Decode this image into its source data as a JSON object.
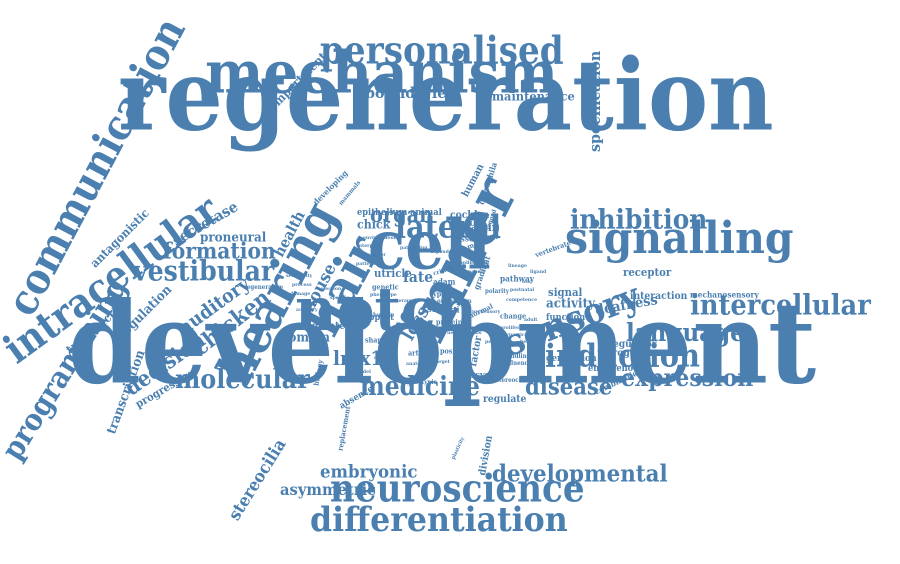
{
  "style": {
    "word_color": "#4a7fb0",
    "background": "#ffffff"
  },
  "words": [
    {
      "id": "w0",
      "text": "development"
    },
    {
      "id": "w1",
      "text": "regeneration"
    },
    {
      "id": "w2",
      "text": "mechanism"
    },
    {
      "id": "w3",
      "text": "notch"
    },
    {
      "id": "w4",
      "text": "cell"
    },
    {
      "id": "w5",
      "text": "inner"
    },
    {
      "id": "w6",
      "text": "hair"
    },
    {
      "id": "w7",
      "text": "hearing"
    },
    {
      "id": "w8",
      "text": "communication"
    },
    {
      "id": "w9",
      "text": "intracellular"
    },
    {
      "id": "w10",
      "text": "signalling"
    },
    {
      "id": "w11",
      "text": "personalised"
    },
    {
      "id": "w12",
      "text": "neuroscience"
    },
    {
      "id": "w13",
      "text": "differentiation"
    },
    {
      "id": "w14",
      "text": "sensory"
    },
    {
      "id": "w15",
      "text": "intercellular"
    },
    {
      "id": "w16",
      "text": "induction"
    },
    {
      "id": "w17",
      "text": "lateral"
    },
    {
      "id": "w18",
      "text": "inhibition"
    },
    {
      "id": "w19",
      "text": "programming"
    },
    {
      "id": "w20",
      "text": "vestibular"
    },
    {
      "id": "w21",
      "text": "molecular"
    },
    {
      "id": "w22",
      "text": "medicine"
    },
    {
      "id": "w23",
      "text": "developmental"
    },
    {
      "id": "w24",
      "text": "language"
    },
    {
      "id": "w25",
      "text": "expression"
    },
    {
      "id": "w26",
      "text": "disease"
    },
    {
      "id": "w27",
      "text": "chicken"
    },
    {
      "id": "w28",
      "text": "formation"
    },
    {
      "id": "w29",
      "text": "decision"
    },
    {
      "id": "w30",
      "text": "auditory"
    },
    {
      "id": "w31",
      "text": "lmx1a"
    },
    {
      "id": "w32",
      "text": "organ"
    },
    {
      "id": "w33",
      "text": "embryonic"
    },
    {
      "id": "w34",
      "text": "asymmetric"
    },
    {
      "id": "w35",
      "text": "stereocilia"
    },
    {
      "id": "w36",
      "text": "specification"
    },
    {
      "id": "w37",
      "text": "boundaries"
    },
    {
      "id": "w38",
      "text": "maintenance"
    },
    {
      "id": "w39",
      "text": "compartment"
    },
    {
      "id": "w40",
      "text": "secretase"
    },
    {
      "id": "w41",
      "text": "proneural"
    },
    {
      "id": "w42",
      "text": "health"
    },
    {
      "id": "w43",
      "text": "mouse"
    },
    {
      "id": "w44",
      "text": "antagonistic"
    },
    {
      "id": "w45",
      "text": "transduction"
    },
    {
      "id": "w46",
      "text": "regulation"
    },
    {
      "id": "w47",
      "text": "transcription"
    },
    {
      "id": "w48",
      "text": "progressive"
    },
    {
      "id": "w49",
      "text": "domain"
    },
    {
      "id": "w50",
      "text": "moderate"
    },
    {
      "id": "w51",
      "text": "deafness"
    },
    {
      "id": "w52",
      "text": "activity"
    },
    {
      "id": "w53",
      "text": "signal"
    },
    {
      "id": "w54",
      "text": "receptor"
    },
    {
      "id": "w55",
      "text": "regulator"
    },
    {
      "id": "w56",
      "text": "progenitor"
    },
    {
      "id": "w57",
      "text": "endogenous"
    },
    {
      "id": "w58",
      "text": "interaction"
    },
    {
      "id": "w59",
      "text": "mechanosensory"
    },
    {
      "id": "w60",
      "text": "combination"
    },
    {
      "id": "w61",
      "text": "regulate"
    },
    {
      "id": "w62",
      "text": "division"
    },
    {
      "id": "w63",
      "text": "gene"
    },
    {
      "id": "w64",
      "text": "factor"
    },
    {
      "id": "w65",
      "text": "otocyst"
    },
    {
      "id": "w66",
      "text": "loss"
    },
    {
      "id": "w67",
      "text": "fate"
    },
    {
      "id": "w68",
      "text": "utricle"
    },
    {
      "id": "w69",
      "text": "chick"
    },
    {
      "id": "w70",
      "text": "epithelium"
    },
    {
      "id": "w71",
      "text": "animal"
    },
    {
      "id": "w72",
      "text": "cochlea"
    },
    {
      "id": "w73",
      "text": "plastin"
    },
    {
      "id": "w74",
      "text": "essential"
    },
    {
      "id": "w75",
      "text": "human"
    },
    {
      "id": "w76",
      "text": "drosophila"
    },
    {
      "id": "w77",
      "text": "vertebrate"
    },
    {
      "id": "w78",
      "text": "pathway"
    },
    {
      "id": "w79",
      "text": "stem"
    },
    {
      "id": "w80",
      "text": "function"
    },
    {
      "id": "w81",
      "text": "generation"
    },
    {
      "id": "w82",
      "text": "absence"
    },
    {
      "id": "w83",
      "text": "replacement"
    },
    {
      "id": "w84",
      "text": "support"
    },
    {
      "id": "w85",
      "text": "developing"
    },
    {
      "id": "w86",
      "text": "genetic"
    },
    {
      "id": "w87",
      "text": "adam"
    },
    {
      "id": "w88",
      "text": "corti"
    },
    {
      "id": "w89",
      "text": "protein"
    },
    {
      "id": "w90",
      "text": "gradient"
    },
    {
      "id": "w91",
      "text": "mediated"
    },
    {
      "id": "w92",
      "text": "regenerative"
    },
    {
      "id": "w93",
      "text": "change"
    },
    {
      "id": "w94",
      "text": "biology"
    },
    {
      "id": "w95",
      "text": "abnormal"
    },
    {
      "id": "w96",
      "text": "stereociliary"
    },
    {
      "id": "w97",
      "text": "shaping"
    },
    {
      "id": "w98",
      "text": "artificial"
    },
    {
      "id": "w99",
      "text": "position"
    },
    {
      "id": "w100",
      "text": "handling"
    },
    {
      "id": "w101",
      "text": "influence"
    },
    {
      "id": "w102",
      "text": "orientation"
    },
    {
      "id": "w103",
      "text": "critical"
    },
    {
      "id": "w104",
      "text": "bundle"
    },
    {
      "id": "w105",
      "text": "mammals"
    },
    {
      "id": "w106",
      "text": "type"
    },
    {
      "id": "w107",
      "text": "environment"
    },
    {
      "id": "w108",
      "text": "organotypic"
    },
    {
      "id": "w109",
      "text": "phenotype"
    },
    {
      "id": "w110",
      "text": "jagged"
    },
    {
      "id": "w111",
      "text": "polarity"
    },
    {
      "id": "w112",
      "text": "proliferation"
    },
    {
      "id": "w113",
      "text": "interplay"
    },
    {
      "id": "w114",
      "text": "patterning"
    },
    {
      "id": "w115",
      "text": "character"
    },
    {
      "id": "w116",
      "text": "dependent"
    },
    {
      "id": "w117",
      "text": "amplification"
    },
    {
      "id": "w118",
      "text": "lineage"
    },
    {
      "id": "w119",
      "text": "dynamics"
    },
    {
      "id": "w120",
      "text": "periphery"
    },
    {
      "id": "w121",
      "text": "sensitivity"
    },
    {
      "id": "w122",
      "text": "selection"
    },
    {
      "id": "w123",
      "text": "specific"
    },
    {
      "id": "w124",
      "text": "plasticity"
    },
    {
      "id": "w125",
      "text": "output"
    },
    {
      "id": "w126",
      "text": "anatomy"
    },
    {
      "id": "w127",
      "text": "target"
    },
    {
      "id": "w128",
      "text": "behaviour"
    },
    {
      "id": "w129",
      "text": "neurogenesis"
    },
    {
      "id": "w130",
      "text": "otic"
    },
    {
      "id": "w131",
      "text": "postnatal"
    },
    {
      "id": "w132",
      "text": "process"
    },
    {
      "id": "w133",
      "text": "competence"
    },
    {
      "id": "w134",
      "text": "adult"
    },
    {
      "id": "w135",
      "text": "damage"
    },
    {
      "id": "w136",
      "text": "model"
    },
    {
      "id": "w137",
      "text": "therapy"
    },
    {
      "id": "w138",
      "text": "auditory"
    },
    {
      "id": "w139",
      "text": "neural"
    },
    {
      "id": "w140",
      "text": "prosensory"
    },
    {
      "id": "w141",
      "text": "ligand"
    },
    {
      "id": "w142",
      "text": "pattern"
    }
  ]
}
